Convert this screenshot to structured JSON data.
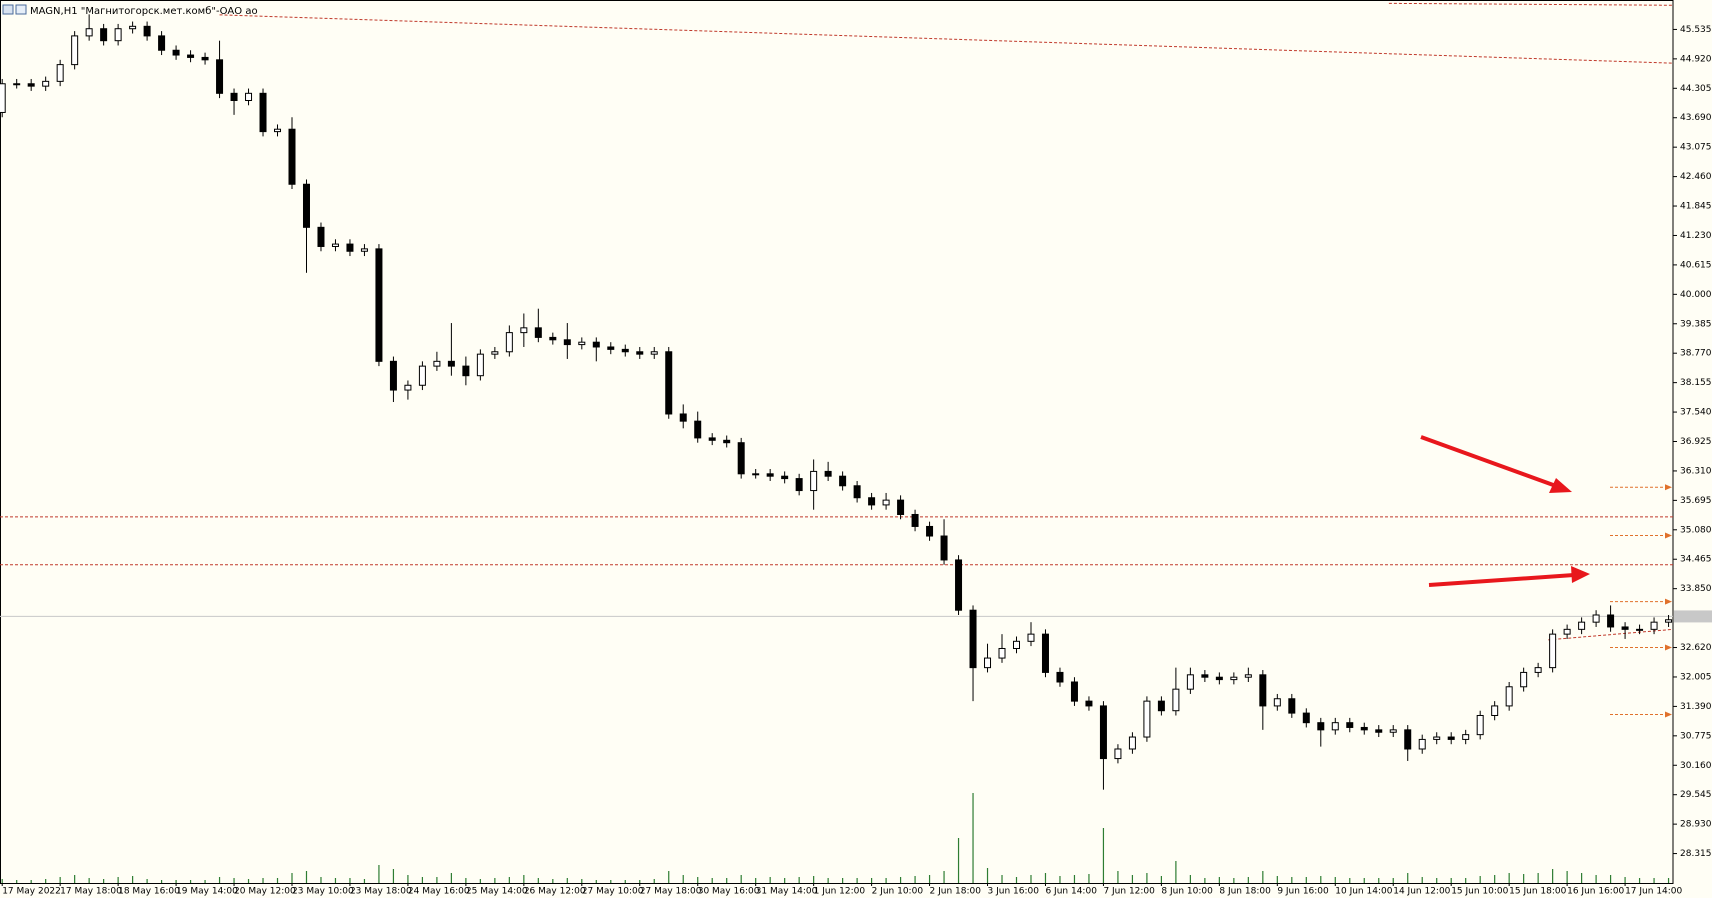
{
  "chart_data": {
    "type": "candlestick",
    "title": "MAGN,H1  \"Магнитогорск.мет.комб\"-ОАО ао",
    "categories": [
      "17 May 2022",
      null,
      null,
      null,
      "17 May 18:00",
      null,
      null,
      null,
      "18 May 16:00",
      null,
      null,
      null,
      "19 May 14:00",
      null,
      null,
      null,
      "20 May 12:00",
      null,
      null,
      null,
      "23 May 10:00",
      null,
      null,
      null,
      "23 May 18:00",
      null,
      null,
      null,
      "24 May 16:00",
      null,
      null,
      null,
      "25 May 14:00",
      null,
      null,
      null,
      "26 May 12:00",
      null,
      null,
      null,
      "27 May 10:00",
      null,
      null,
      null,
      "27 May 18:00",
      null,
      null,
      null,
      "30 May 16:00",
      null,
      null,
      null,
      "31 May 14:00",
      null,
      null,
      null,
      "1 Jun 12:00",
      null,
      null,
      null,
      "2 Jun 10:00",
      null,
      null,
      null,
      "2 Jun 18:00",
      null,
      null,
      null,
      "3 Jun 16:00",
      null,
      null,
      null,
      "6 Jun 14:00",
      null,
      null,
      null,
      "7 Jun 12:00",
      null,
      null,
      null,
      "8 Jun 10:00",
      null,
      null,
      null,
      "8 Jun 18:00",
      null,
      null,
      null,
      "9 Jun 16:00",
      null,
      null,
      null,
      "10 Jun 14:00",
      null,
      null,
      null,
      "14 Jun 12:00",
      null,
      null,
      null,
      "15 Jun 10:00",
      null,
      null,
      null,
      "15 Jun 18:00",
      null,
      null,
      null,
      "16 Jun 16:00",
      null,
      null,
      null,
      "17 Jun 14:00",
      null,
      null,
      null
    ],
    "open": [
      43.8,
      44.4,
      44.4,
      44.35,
      44.45,
      44.8,
      45.4,
      45.55,
      45.3,
      45.55,
      45.6,
      45.4,
      45.1,
      45.0,
      44.95,
      44.9,
      44.2,
      44.05,
      44.2,
      43.4,
      43.45,
      42.3,
      41.4,
      41.0,
      41.05,
      40.9,
      40.95,
      38.6,
      38.0,
      38.1,
      38.5,
      38.6,
      38.5,
      38.3,
      38.75,
      38.8,
      39.2,
      39.3,
      39.1,
      39.05,
      38.95,
      39.0,
      38.9,
      38.85,
      38.8,
      38.75,
      38.8,
      37.5,
      37.35,
      37.0,
      36.95,
      36.9,
      36.25,
      36.25,
      36.2,
      36.15,
      35.9,
      36.3,
      36.2,
      36.0,
      35.75,
      35.6,
      35.7,
      35.4,
      35.15,
      34.95,
      34.45,
      33.4,
      32.2,
      32.4,
      32.6,
      32.75,
      32.9,
      32.1,
      31.9,
      31.5,
      31.4,
      30.3,
      30.5,
      30.75,
      31.5,
      31.3,
      31.75,
      32.05,
      32.0,
      31.95,
      32.0,
      32.05,
      31.4,
      31.55,
      31.25,
      31.05,
      30.9,
      31.05,
      30.95,
      30.9,
      30.85,
      30.9,
      30.5,
      30.7,
      30.75,
      30.7,
      30.8,
      31.2,
      31.4,
      31.8,
      32.1,
      32.2,
      32.9,
      33.0,
      33.15,
      33.3,
      33.05,
      33.0,
      33.0,
      33.15
    ],
    "high": [
      44.5,
      44.5,
      44.5,
      44.55,
      44.9,
      45.5,
      45.85,
      45.65,
      45.65,
      45.7,
      45.7,
      45.5,
      45.2,
      45.1,
      45.05,
      45.3,
      44.3,
      44.3,
      44.3,
      43.55,
      43.7,
      42.4,
      41.5,
      41.15,
      41.15,
      41.05,
      41.05,
      38.7,
      38.2,
      38.6,
      38.8,
      39.4,
      38.7,
      38.85,
      38.9,
      39.35,
      39.6,
      39.7,
      39.2,
      39.4,
      39.1,
      39.1,
      39.0,
      38.95,
      38.9,
      38.9,
      38.9,
      37.7,
      37.55,
      37.1,
      37.05,
      37.0,
      36.35,
      36.35,
      36.3,
      36.25,
      36.55,
      36.5,
      36.3,
      36.1,
      35.85,
      35.85,
      35.8,
      35.5,
      35.25,
      35.3,
      34.55,
      33.5,
      32.7,
      32.9,
      32.85,
      33.15,
      33.0,
      32.2,
      32.0,
      31.6,
      31.5,
      30.6,
      30.85,
      31.6,
      31.6,
      32.2,
      32.2,
      32.15,
      32.1,
      32.1,
      32.2,
      32.15,
      31.65,
      31.65,
      31.35,
      31.15,
      31.15,
      31.15,
      31.05,
      31.0,
      31.0,
      31.0,
      30.8,
      30.85,
      30.85,
      30.9,
      31.3,
      31.5,
      31.9,
      32.2,
      32.3,
      33.0,
      33.1,
      33.25,
      33.4,
      33.5,
      33.15,
      33.1,
      33.25,
      33.3
    ],
    "low": [
      43.7,
      44.3,
      44.25,
      44.25,
      44.35,
      44.7,
      45.3,
      45.2,
      45.2,
      45.45,
      45.3,
      45.0,
      44.9,
      44.85,
      44.8,
      44.1,
      43.75,
      43.95,
      43.3,
      43.3,
      42.2,
      40.45,
      40.9,
      40.9,
      40.8,
      40.8,
      38.5,
      37.75,
      37.8,
      38.0,
      38.4,
      38.3,
      38.1,
      38.2,
      38.65,
      38.7,
      38.9,
      39.0,
      38.95,
      38.65,
      38.85,
      38.6,
      38.75,
      38.7,
      38.65,
      38.65,
      37.4,
      37.2,
      36.9,
      36.85,
      36.8,
      36.15,
      36.15,
      36.1,
      36.05,
      35.8,
      35.5,
      36.1,
      35.9,
      35.65,
      35.5,
      35.5,
      35.3,
      35.05,
      34.85,
      34.35,
      33.3,
      31.5,
      32.1,
      32.3,
      32.5,
      32.65,
      32.0,
      31.8,
      31.4,
      31.3,
      29.65,
      30.2,
      30.4,
      30.65,
      31.2,
      31.2,
      31.65,
      31.9,
      31.85,
      31.85,
      31.9,
      30.9,
      31.3,
      31.15,
      30.95,
      30.55,
      30.8,
      30.85,
      30.8,
      30.75,
      30.75,
      30.25,
      30.4,
      30.6,
      30.6,
      30.6,
      30.7,
      31.1,
      31.3,
      31.7,
      32.0,
      32.1,
      32.8,
      32.9,
      33.05,
      32.95,
      32.8,
      32.9,
      32.9,
      33.05
    ],
    "close": [
      44.4,
      44.4,
      44.35,
      44.45,
      44.8,
      45.4,
      45.55,
      45.3,
      45.55,
      45.6,
      45.4,
      45.1,
      45.0,
      44.95,
      44.9,
      44.2,
      44.05,
      44.2,
      43.4,
      43.45,
      42.3,
      41.4,
      41.0,
      41.05,
      40.9,
      40.95,
      38.6,
      38.0,
      38.1,
      38.5,
      38.6,
      38.5,
      38.3,
      38.75,
      38.8,
      39.2,
      39.3,
      39.1,
      39.05,
      38.95,
      39.0,
      38.9,
      38.85,
      38.8,
      38.75,
      38.8,
      37.5,
      37.35,
      37.0,
      36.95,
      36.9,
      36.25,
      36.25,
      36.2,
      36.15,
      35.9,
      36.3,
      36.2,
      36.0,
      35.75,
      35.6,
      35.7,
      35.4,
      35.15,
      34.95,
      34.45,
      33.4,
      32.2,
      32.4,
      32.6,
      32.75,
      32.9,
      32.1,
      31.9,
      31.5,
      31.4,
      30.3,
      30.5,
      30.75,
      31.5,
      31.3,
      31.75,
      32.05,
      32.0,
      31.95,
      32.0,
      32.05,
      31.4,
      31.55,
      31.25,
      31.05,
      30.9,
      31.05,
      30.95,
      30.9,
      30.85,
      30.9,
      30.5,
      30.7,
      30.75,
      30.7,
      30.8,
      31.2,
      31.4,
      31.8,
      32.1,
      32.2,
      32.9,
      33.0,
      33.15,
      33.3,
      33.05,
      33.0,
      33.0,
      33.15,
      33.2
    ],
    "volume": [
      4,
      3,
      3,
      4,
      6,
      8,
      5,
      4,
      6,
      7,
      4,
      3,
      3,
      3,
      3,
      6,
      5,
      4,
      5,
      5,
      10,
      12,
      6,
      5,
      5,
      4,
      18,
      14,
      8,
      6,
      6,
      10,
      5,
      4,
      5,
      6,
      8,
      5,
      4,
      5,
      4,
      3,
      3,
      3,
      3,
      4,
      12,
      8,
      6,
      5,
      5,
      8,
      5,
      6,
      5,
      6,
      7,
      5,
      5,
      5,
      5,
      5,
      6,
      7,
      8,
      12,
      45,
      90,
      15,
      8,
      6,
      8,
      10,
      7,
      8,
      9,
      55,
      12,
      8,
      10,
      7,
      22,
      8,
      5,
      6,
      5,
      6,
      12,
      7,
      6,
      6,
      7,
      6,
      5,
      5,
      5,
      5,
      10,
      6,
      5,
      5,
      5,
      7,
      8,
      10,
      9,
      10,
      14,
      12,
      10,
      8,
      8,
      6,
      5,
      5,
      5
    ],
    "volume_lim": [
      0,
      100
    ],
    "volume_color": "#2e7d32",
    "ylim": [
      27.7,
      46.15
    ],
    "yticks": [
      28.315,
      {
        "value": 28.93,
        "label": "28.930"
      },
      29.545,
      {
        "value": 30.16,
        "label": "30.160"
      },
      30.775,
      {
        "value": 31.39,
        "label": "31.390"
      },
      32.005,
      {
        "value": 32.62,
        "label": "32.620"
      },
      {
        "value": 33.85,
        "label": "33.850"
      },
      34.465,
      {
        "value": 35.08,
        "label": "35.080"
      },
      35.695,
      {
        "value": 36.31,
        "label": "36.310"
      },
      36.925,
      {
        "value": 37.54,
        "label": "37.540"
      },
      38.155,
      {
        "value": 38.77,
        "label": "38.770"
      },
      39.385,
      {
        "value": 40.0,
        "label": "40.000"
      },
      40.615,
      {
        "value": 41.23,
        "label": "41.230"
      },
      41.845,
      {
        "value": 42.46,
        "label": "42.460"
      },
      43.075,
      {
        "value": 43.69,
        "label": "43.690"
      },
      44.305,
      {
        "value": 44.92,
        "label": "44.920"
      },
      45.535
    ],
    "levels": [
      35.35,
      34.35
    ],
    "level_color": "#c0392b",
    "current_price": 33.27,
    "markers": [
      35.97,
      34.96,
      33.58,
      32.62,
      31.22
    ],
    "marker_color": "#e0712c",
    "trendlines": [
      {
        "x": [
          15,
          115.3
        ],
        "y": [
          45.84,
          44.83
        ]
      },
      {
        "x": [
          95.7,
          115.3
        ],
        "y": [
          46.08,
          46.04
        ]
      },
      {
        "x": [
          106.7,
          115.3
        ],
        "y": [
          32.78,
          33.0
        ]
      }
    ]
  }
}
